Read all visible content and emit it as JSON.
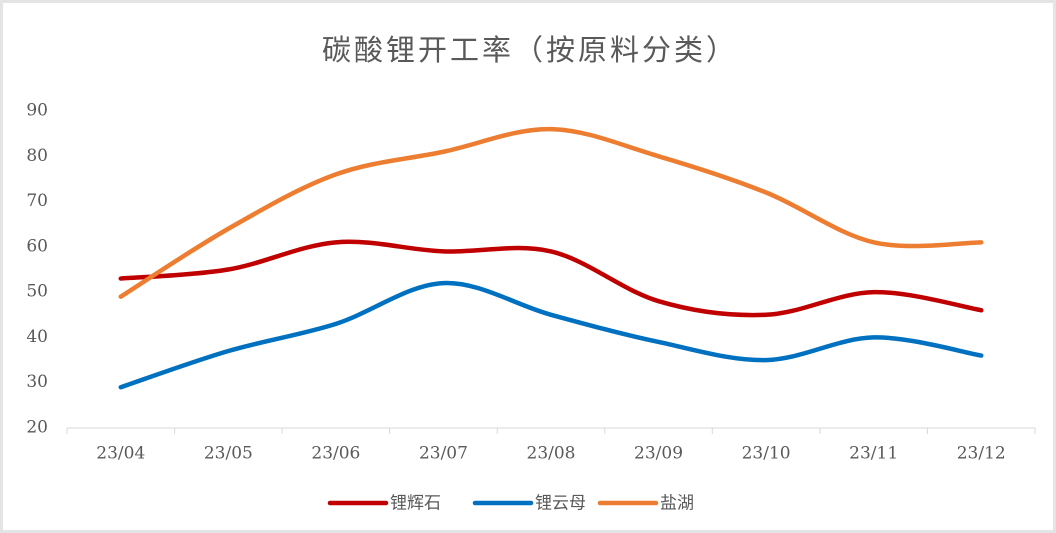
{
  "chart_data": {
    "type": "line",
    "title": "碳酸锂开工率（按原料分类）",
    "categories": [
      "23/04",
      "23/05",
      "23/06",
      "23/07",
      "23/08",
      "23/09",
      "23/10",
      "23/11",
      "23/12"
    ],
    "series": [
      {
        "name": "锂辉石",
        "color": "#c00000",
        "values": [
          53,
          55,
          61,
          59,
          59,
          48,
          45,
          50,
          46
        ]
      },
      {
        "name": "锂云母",
        "color": "#0070c0",
        "values": [
          29,
          37,
          43,
          52,
          45,
          39,
          35,
          40,
          36
        ]
      },
      {
        "name": "盐湖",
        "color": "#ed7d31",
        "values": [
          49,
          64,
          76,
          81,
          86,
          80,
          72,
          61,
          61
        ]
      }
    ],
    "ylim": [
      20,
      90
    ],
    "yticks": [
      20,
      30,
      40,
      50,
      60,
      70,
      80,
      90
    ],
    "smooth": true,
    "legend": "bottom"
  }
}
